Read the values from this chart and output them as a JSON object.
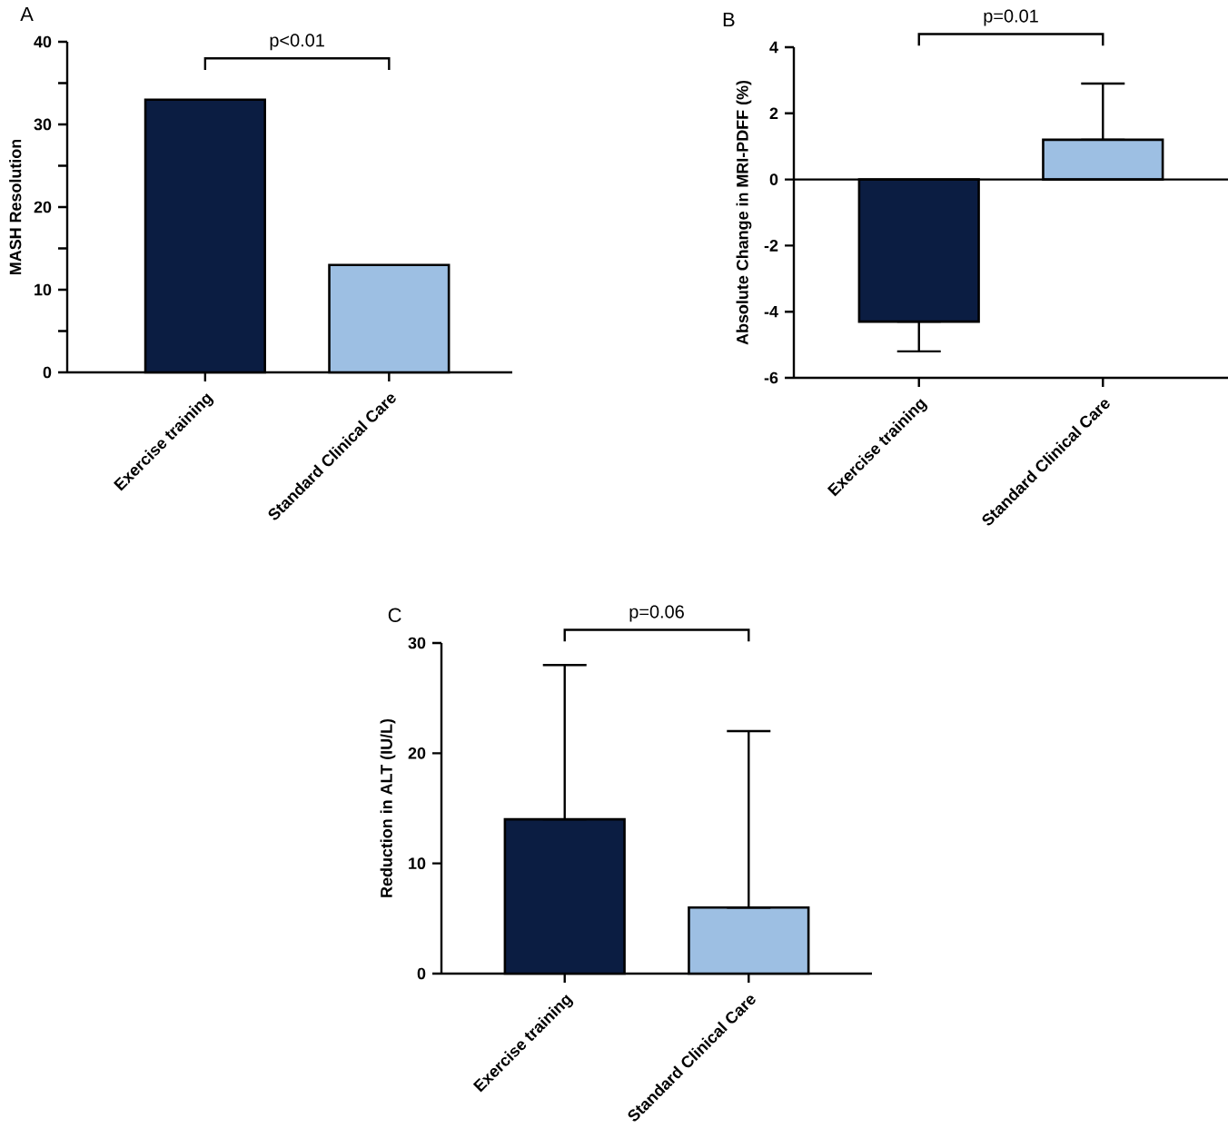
{
  "chart_data": [
    {
      "type": "bar",
      "title": "A",
      "ylabel": "MASH Resolution",
      "categories": [
        "Exercise training",
        "Standard Clinical Care"
      ],
      "values": [
        33,
        13
      ],
      "colors": [
        "#0b1d42",
        "#9dbfe3"
      ],
      "ylim": [
        0,
        40
      ],
      "yticks": [
        0,
        {
          "value": 5,
          "label": null
        },
        10,
        {
          "value": 15,
          "label": null
        },
        20,
        {
          "value": 25,
          "label": null
        },
        30,
        {
          "value": 35,
          "label": null
        },
        40
      ],
      "annotations": [
        "p<0.01"
      ]
    },
    {
      "type": "bar",
      "title": "B",
      "ylabel": "Absolute Change in MRI-PDFF (%)",
      "categories": [
        "Exercise training",
        "Standard Clinical Care"
      ],
      "values": [
        -4.3,
        1.2
      ],
      "errors": [
        [
          -5.2,
          -4.3
        ],
        [
          1.2,
          2.9
        ]
      ],
      "colors": [
        "#0b1d42",
        "#9dbfe3"
      ],
      "ylim": [
        -6,
        4
      ],
      "yticks": [
        -6,
        -4,
        -2,
        0,
        2,
        4
      ],
      "ref_lines": [
        {
          "axis": "y",
          "value": 0
        }
      ],
      "annotations": [
        "p=0.01"
      ]
    },
    {
      "type": "bar",
      "title": "C",
      "ylabel": "Reduction in ALT (IU/L)",
      "categories": [
        "Exercise training",
        "Standard Clinical Care"
      ],
      "values": [
        14,
        6
      ],
      "errors": [
        [
          14,
          28
        ],
        [
          6,
          22
        ]
      ],
      "colors": [
        "#0b1d42",
        "#9dbfe3"
      ],
      "ylim": [
        0,
        30
      ],
      "yticks": [
        0,
        10,
        20,
        30
      ],
      "annotations": [
        "p=0.06"
      ]
    }
  ]
}
